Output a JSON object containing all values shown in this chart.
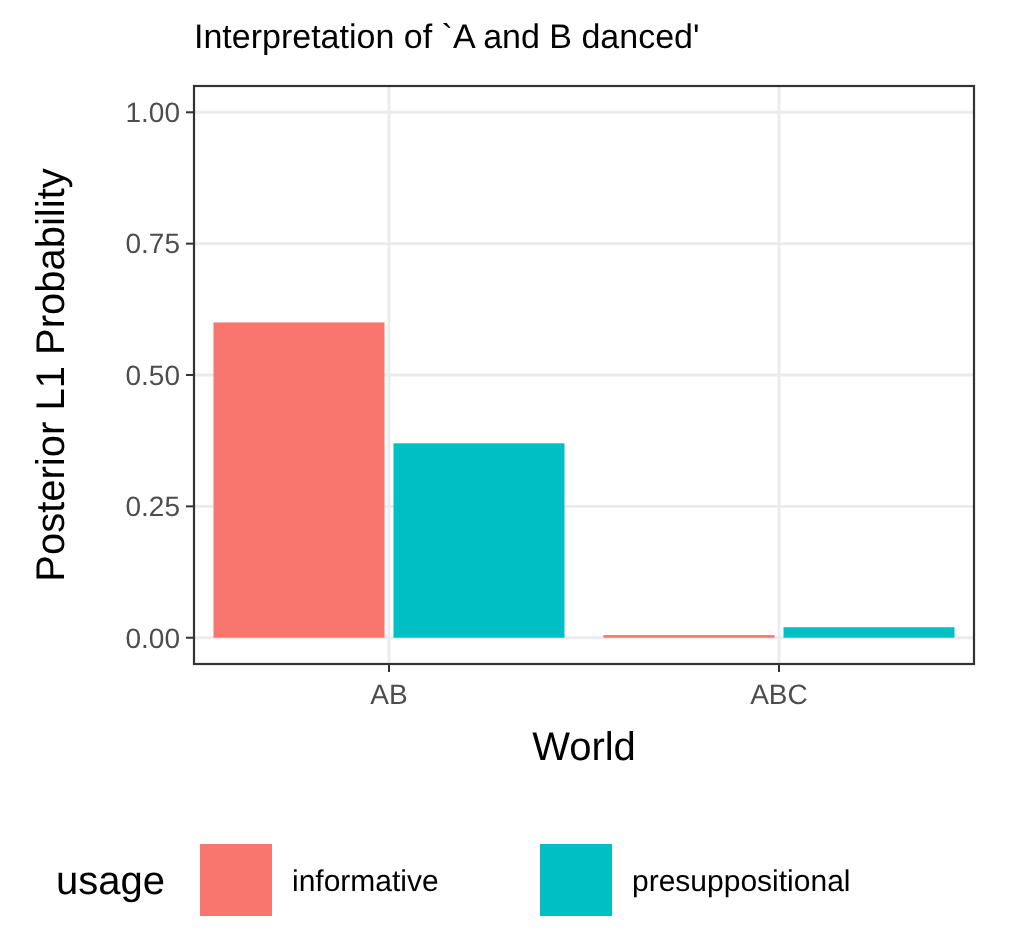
{
  "chart_data": {
    "type": "bar",
    "title": "Interpretation of `A and B danced'",
    "xlabel": "World",
    "ylabel": "Posterior L1 Probability",
    "legend_title": "usage",
    "categories": [
      "AB",
      "ABC"
    ],
    "series": [
      {
        "name": "informative",
        "color": "#f8766d",
        "values": [
          0.6,
          0.005
        ]
      },
      {
        "name": "presuppositional",
        "color": "#00bfc4",
        "values": [
          0.37,
          0.02
        ]
      }
    ],
    "ylim": [
      -0.05,
      1.05
    ],
    "yticks": [
      {
        "value": 0,
        "label": "0.00"
      },
      {
        "value": 0.25,
        "label": "0.25"
      },
      {
        "value": 0.5,
        "label": "0.50"
      },
      {
        "value": 0.75,
        "label": "0.75"
      },
      {
        "value": 1,
        "label": "1.00"
      }
    ],
    "grid": true,
    "legend": "bottom"
  }
}
